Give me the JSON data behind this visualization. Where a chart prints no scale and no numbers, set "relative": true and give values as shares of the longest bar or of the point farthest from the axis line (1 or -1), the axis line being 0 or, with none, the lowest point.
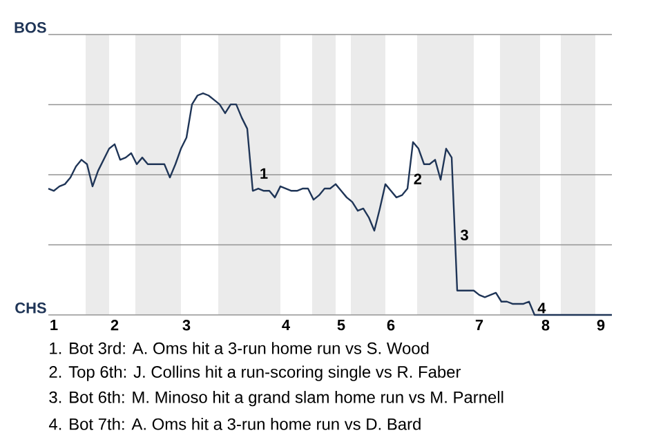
{
  "chart_data": {
    "type": "line",
    "relative": true,
    "categories": [
      null,
      "1",
      null,
      null,
      null,
      null,
      null,
      null,
      null,
      null,
      null,
      null,
      "2",
      null,
      null,
      null,
      null,
      null,
      null,
      null,
      null,
      null,
      null,
      null,
      null,
      "3",
      null,
      null,
      null,
      null,
      null,
      null,
      null,
      null,
      null,
      null,
      null,
      null,
      null,
      null,
      null,
      null,
      null,
      "4",
      null,
      null,
      null,
      null,
      null,
      null,
      null,
      null,
      null,
      "5",
      null,
      null,
      null,
      null,
      null,
      null,
      null,
      null,
      "6",
      null,
      null,
      null,
      null,
      null,
      null,
      null,
      null,
      null,
      null,
      null,
      null,
      null,
      null,
      null,
      "7",
      null,
      null,
      null,
      null,
      null,
      null,
      null,
      null,
      null,
      null,
      null,
      "8",
      null,
      null,
      null,
      null,
      null,
      null,
      null,
      null,
      null,
      "9",
      null,
      null
    ],
    "series": [
      {
        "color": "#1f3557",
        "values": [
          0.57,
          0.56,
          0.58,
          0.59,
          0.62,
          0.67,
          0.7,
          0.68,
          0.58,
          0.65,
          0.7,
          0.75,
          0.77,
          0.7,
          0.71,
          0.73,
          0.68,
          0.71,
          0.68,
          0.68,
          0.68,
          0.68,
          0.62,
          0.68,
          0.75,
          0.8,
          0.95,
          0.99,
          1,
          0.99,
          0.97,
          0.95,
          0.91,
          0.95,
          0.95,
          0.89,
          0.84,
          0.56,
          0.57,
          0.56,
          0.56,
          0.53,
          0.58,
          0.57,
          0.56,
          0.56,
          0.57,
          0.57,
          0.52,
          0.54,
          0.57,
          0.57,
          0.59,
          0.56,
          0.53,
          0.51,
          0.47,
          0.48,
          0.44,
          0.38,
          0.48,
          0.59,
          0.56,
          0.53,
          0.54,
          0.57,
          0.78,
          0.75,
          0.68,
          0.68,
          0.7,
          0.61,
          0.75,
          0.71,
          0.11,
          0.11,
          0.11,
          0.11,
          0.09,
          0.08,
          0.09,
          0.1,
          0.06,
          0.06,
          0.05,
          0.05,
          0.05,
          0.06,
          0,
          0,
          0,
          0,
          0,
          0,
          0,
          0,
          0,
          0,
          0,
          0,
          0,
          0,
          0
        ]
      }
    ],
    "grid": "y",
    "annotations": [
      "BOS",
      "CHS",
      "1",
      "2",
      "3",
      "4",
      "1. Bot 3rd: A. Oms hit a 3-run home run vs S. Wood",
      "2. Top 6th: J. Collins hit a run-scoring single vs R. Faber",
      "3. Bot 6th: M. Minoso hit a grand slam home run vs M. Parnell",
      "4. Bot 7th: A. Oms hit a 3-run home run vs D. Bard"
    ]
  }
}
